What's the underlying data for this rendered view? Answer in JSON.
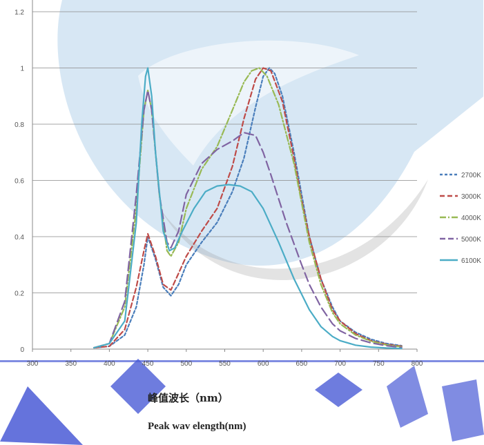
{
  "chart_data": {
    "type": "line",
    "title": "",
    "xlabel": "峰值波长（nm）",
    "xlabel_en": "Peak wav elength(nm)",
    "ylabel": "",
    "xlim": [
      300,
      800
    ],
    "ylim": [
      0,
      1.2
    ],
    "x_ticks": [
      "300",
      "350",
      "400",
      "450",
      "500",
      "550",
      "600",
      "650",
      "700",
      "750",
      "800"
    ],
    "y_ticks": [
      "0",
      "0.2",
      "0.4",
      "0.6",
      "0.8",
      "1",
      "1.2"
    ],
    "grid": "horizontal",
    "legend_position": "right",
    "series": [
      {
        "name": "2700K",
        "color": "#4a7ebb",
        "dash": "short-dash",
        "points": [
          [
            380,
            0.005
          ],
          [
            400,
            0.01
          ],
          [
            420,
            0.05
          ],
          [
            435,
            0.15
          ],
          [
            445,
            0.3
          ],
          [
            450,
            0.4
          ],
          [
            460,
            0.32
          ],
          [
            470,
            0.22
          ],
          [
            480,
            0.19
          ],
          [
            490,
            0.23
          ],
          [
            500,
            0.3
          ],
          [
            520,
            0.38
          ],
          [
            540,
            0.45
          ],
          [
            560,
            0.56
          ],
          [
            575,
            0.68
          ],
          [
            590,
            0.86
          ],
          [
            600,
            0.97
          ],
          [
            608,
            1.0
          ],
          [
            615,
            0.98
          ],
          [
            625,
            0.9
          ],
          [
            640,
            0.7
          ],
          [
            650,
            0.55
          ],
          [
            660,
            0.4
          ],
          [
            675,
            0.25
          ],
          [
            690,
            0.15
          ],
          [
            700,
            0.1
          ],
          [
            720,
            0.06
          ],
          [
            740,
            0.035
          ],
          [
            760,
            0.02
          ],
          [
            780,
            0.012
          ]
        ]
      },
      {
        "name": "3000K",
        "color": "#be4b48",
        "dash": "dash",
        "points": [
          [
            380,
            0.005
          ],
          [
            400,
            0.01
          ],
          [
            420,
            0.07
          ],
          [
            435,
            0.22
          ],
          [
            445,
            0.35
          ],
          [
            450,
            0.41
          ],
          [
            460,
            0.33
          ],
          [
            470,
            0.23
          ],
          [
            480,
            0.21
          ],
          [
            490,
            0.27
          ],
          [
            500,
            0.33
          ],
          [
            520,
            0.42
          ],
          [
            540,
            0.5
          ],
          [
            560,
            0.65
          ],
          [
            575,
            0.82
          ],
          [
            590,
            0.96
          ],
          [
            600,
            1.0
          ],
          [
            610,
            0.99
          ],
          [
            625,
            0.88
          ],
          [
            640,
            0.68
          ],
          [
            650,
            0.53
          ],
          [
            660,
            0.4
          ],
          [
            675,
            0.25
          ],
          [
            690,
            0.14
          ],
          [
            700,
            0.1
          ],
          [
            720,
            0.055
          ],
          [
            740,
            0.03
          ],
          [
            760,
            0.017
          ],
          [
            780,
            0.01
          ]
        ]
      },
      {
        "name": "4000K",
        "color": "#98b954",
        "dash": "dash-dot",
        "points": [
          [
            380,
            0.005
          ],
          [
            400,
            0.02
          ],
          [
            420,
            0.15
          ],
          [
            435,
            0.5
          ],
          [
            445,
            0.85
          ],
          [
            450,
            0.92
          ],
          [
            455,
            0.85
          ],
          [
            465,
            0.55
          ],
          [
            475,
            0.35
          ],
          [
            480,
            0.33
          ],
          [
            490,
            0.38
          ],
          [
            500,
            0.5
          ],
          [
            520,
            0.64
          ],
          [
            540,
            0.72
          ],
          [
            560,
            0.85
          ],
          [
            575,
            0.95
          ],
          [
            585,
            0.99
          ],
          [
            595,
            1.0
          ],
          [
            605,
            0.97
          ],
          [
            620,
            0.87
          ],
          [
            640,
            0.66
          ],
          [
            650,
            0.52
          ],
          [
            660,
            0.38
          ],
          [
            675,
            0.23
          ],
          [
            690,
            0.13
          ],
          [
            700,
            0.09
          ],
          [
            720,
            0.05
          ],
          [
            740,
            0.028
          ],
          [
            760,
            0.015
          ],
          [
            780,
            0.008
          ]
        ]
      },
      {
        "name": "5000K",
        "color": "#8064a2",
        "dash": "long-dash",
        "points": [
          [
            380,
            0.005
          ],
          [
            400,
            0.02
          ],
          [
            420,
            0.17
          ],
          [
            435,
            0.55
          ],
          [
            445,
            0.85
          ],
          [
            450,
            0.92
          ],
          [
            455,
            0.85
          ],
          [
            465,
            0.55
          ],
          [
            475,
            0.38
          ],
          [
            480,
            0.36
          ],
          [
            490,
            0.42
          ],
          [
            500,
            0.55
          ],
          [
            520,
            0.66
          ],
          [
            540,
            0.71
          ],
          [
            560,
            0.74
          ],
          [
            575,
            0.77
          ],
          [
            590,
            0.76
          ],
          [
            600,
            0.7
          ],
          [
            610,
            0.62
          ],
          [
            630,
            0.45
          ],
          [
            650,
            0.3
          ],
          [
            660,
            0.23
          ],
          [
            675,
            0.15
          ],
          [
            690,
            0.09
          ],
          [
            700,
            0.065
          ],
          [
            720,
            0.038
          ],
          [
            740,
            0.022
          ],
          [
            760,
            0.012
          ],
          [
            780,
            0.006
          ]
        ]
      },
      {
        "name": "6100K",
        "color": "#4bacc6",
        "dash": "solid",
        "points": [
          [
            380,
            0.005
          ],
          [
            400,
            0.02
          ],
          [
            420,
            0.1
          ],
          [
            435,
            0.45
          ],
          [
            442,
            0.8
          ],
          [
            447,
            0.97
          ],
          [
            450,
            1.0
          ],
          [
            455,
            0.9
          ],
          [
            460,
            0.7
          ],
          [
            470,
            0.42
          ],
          [
            478,
            0.35
          ],
          [
            485,
            0.36
          ],
          [
            495,
            0.42
          ],
          [
            510,
            0.5
          ],
          [
            525,
            0.56
          ],
          [
            540,
            0.58
          ],
          [
            555,
            0.585
          ],
          [
            570,
            0.58
          ],
          [
            585,
            0.56
          ],
          [
            600,
            0.5
          ],
          [
            620,
            0.38
          ],
          [
            640,
            0.25
          ],
          [
            660,
            0.14
          ],
          [
            675,
            0.08
          ],
          [
            690,
            0.045
          ],
          [
            700,
            0.03
          ],
          [
            720,
            0.014
          ],
          [
            740,
            0.007
          ],
          [
            760,
            0.004
          ],
          [
            780,
            0.002
          ]
        ]
      }
    ]
  }
}
